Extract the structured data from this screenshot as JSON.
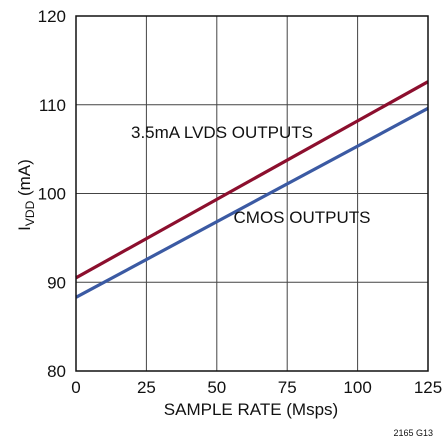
{
  "chart_data": {
    "type": "line",
    "xlabel": "SAMPLE RATE (Msps)",
    "ylabel_main": "I",
    "ylabel_sub": "VDD",
    "ylabel_suffix": " (mA)",
    "xlim": [
      0,
      125
    ],
    "ylim": [
      80,
      120
    ],
    "xticks": [
      0,
      25,
      50,
      75,
      100,
      125
    ],
    "yticks": [
      80,
      90,
      100,
      110,
      120
    ],
    "grid": true,
    "series": [
      {
        "name": "3.5mA LVDS OUTPUTS",
        "color": "#8c0f2e",
        "x": [
          0,
          125
        ],
        "y": [
          90.5,
          112.6
        ]
      },
      {
        "name": "CMOS OUTPUTS",
        "color": "#3b5aa3",
        "x": [
          0,
          125
        ],
        "y": [
          88.3,
          109.6
        ]
      }
    ],
    "figure_id": "2165 G13"
  }
}
